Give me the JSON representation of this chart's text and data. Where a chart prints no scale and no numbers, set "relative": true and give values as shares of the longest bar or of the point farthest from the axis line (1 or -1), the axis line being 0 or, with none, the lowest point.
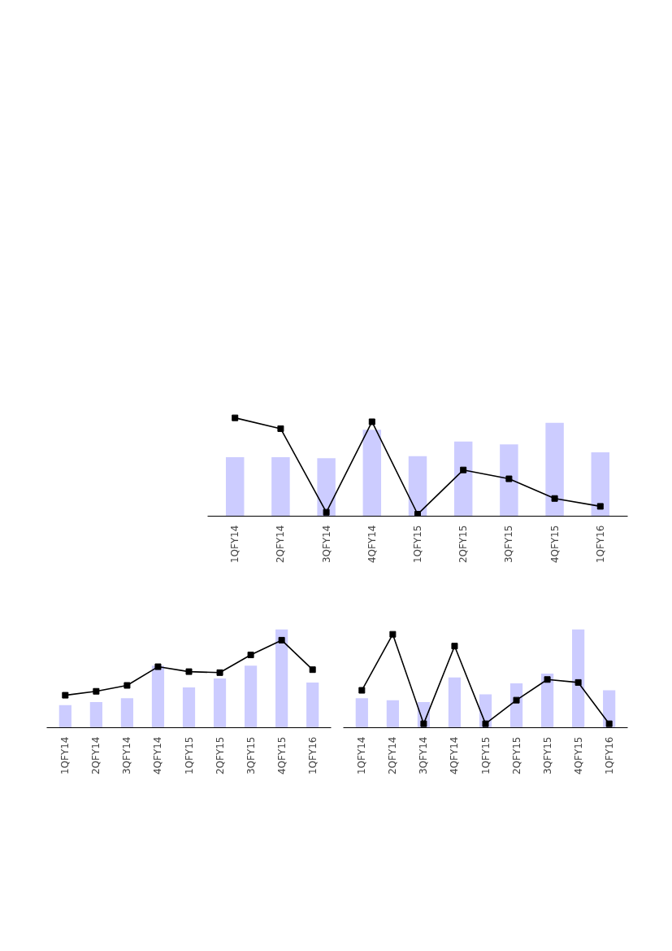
{
  "chart_data": [
    {
      "type": "bar",
      "relative": true,
      "categories": [
        "1QFY14",
        "2QFY14",
        "3QFY14",
        "4QFY14",
        "1QFY15",
        "2QFY15",
        "3QFY15",
        "4QFY15",
        "1QFY16"
      ],
      "marker": "square",
      "grid": false,
      "series": [
        {
          "color": "#ccccff",
          "values": [
            0.6,
            0.6,
            0.59,
            0.88,
            0.61,
            0.76,
            0.73,
            0.95,
            0.65
          ]
        },
        {
          "type": "line",
          "color": "#000000",
          "values": [
            1.0,
            0.89,
            0.04,
            0.96,
            0.02,
            0.47,
            0.38,
            0.18,
            0.1
          ]
        }
      ]
    },
    {
      "type": "bar",
      "relative": true,
      "categories": [
        "1QFY14",
        "2QFY14",
        "3QFY14",
        "4QFY14",
        "1QFY15",
        "2QFY15",
        "3QFY15",
        "4QFY15",
        "1QFY16"
      ],
      "marker": "square",
      "grid": false,
      "series": [
        {
          "color": "#ccccff",
          "values": [
            0.23,
            0.26,
            0.3,
            0.63,
            0.41,
            0.5,
            0.63,
            1.0,
            0.46
          ]
        },
        {
          "type": "line",
          "color": "#000000",
          "values": [
            0.33,
            0.37,
            0.43,
            0.62,
            0.57,
            0.56,
            0.74,
            0.89,
            0.59
          ]
        }
      ]
    },
    {
      "type": "bar",
      "relative": true,
      "categories": [
        "1QFY14",
        "2QFY14",
        "3QFY14",
        "4QFY14",
        "1QFY15",
        "2QFY15",
        "3QFY15",
        "4QFY15",
        "1QFY16"
      ],
      "marker": "square",
      "grid": false,
      "series": [
        {
          "color": "#ccccff",
          "values": [
            0.3,
            0.28,
            0.26,
            0.51,
            0.34,
            0.45,
            0.55,
            1.0,
            0.38
          ]
        },
        {
          "type": "line",
          "color": "#000000",
          "values": [
            0.38,
            0.95,
            0.04,
            0.83,
            0.04,
            0.28,
            0.49,
            0.46,
            0.04
          ]
        }
      ]
    }
  ]
}
